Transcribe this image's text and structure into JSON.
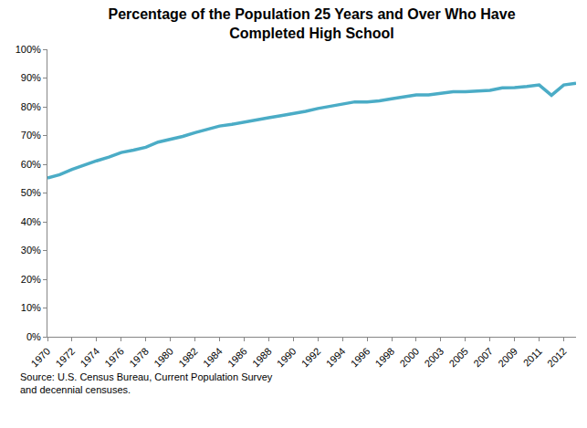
{
  "chart_data": {
    "type": "line",
    "title": "Percentage of the Population 25 Years and Over Who Have\nCompleted High School",
    "source": "Source: U.S. Census Bureau, Current Population Survey\nand decennial censuses.",
    "categories": [
      "1970",
      null,
      "1972",
      null,
      "1974",
      null,
      "1976",
      null,
      "1978",
      null,
      "1980",
      null,
      "1982",
      null,
      "1984",
      null,
      "1986",
      null,
      "1988",
      null,
      "1990",
      null,
      "1992",
      null,
      "1994",
      null,
      "1996",
      null,
      "1998",
      null,
      "2000",
      null,
      "2003",
      null,
      "2005",
      null,
      "2007",
      null,
      "2009",
      null,
      "2011",
      null,
      "2012",
      null
    ],
    "values": [
      55.2,
      56.4,
      58.2,
      59.8,
      61.2,
      62.5,
      64.1,
      64.9,
      65.9,
      67.7,
      68.6,
      69.7,
      71.0,
      72.1,
      73.3,
      73.9,
      74.7,
      75.6,
      76.2,
      76.9,
      77.6,
      78.4,
      79.4,
      80.2,
      80.9,
      81.7,
      81.7,
      82.1,
      82.8,
      83.4,
      84.1,
      84.1,
      84.6,
      85.2,
      85.2,
      85.5,
      85.7,
      86.6,
      86.7,
      87.1,
      87.6,
      84.0,
      87.6,
      88.2
    ],
    "color": "#4bacc6",
    "ylim": [
      0,
      100
    ],
    "yticks": [
      {
        "value": 0,
        "label": "0%"
      },
      {
        "value": 10,
        "label": "10%"
      },
      {
        "value": 20,
        "label": "20%"
      },
      {
        "value": 30,
        "label": "30%"
      },
      {
        "value": 40,
        "label": "40%"
      },
      {
        "value": 50,
        "label": "50%"
      },
      {
        "value": 60,
        "label": "60%"
      },
      {
        "value": 70,
        "label": "70%"
      },
      {
        "value": 80,
        "label": "80%"
      },
      {
        "value": 90,
        "label": "90%"
      },
      {
        "value": 100,
        "label": "100%"
      }
    ],
    "grid": false
  }
}
